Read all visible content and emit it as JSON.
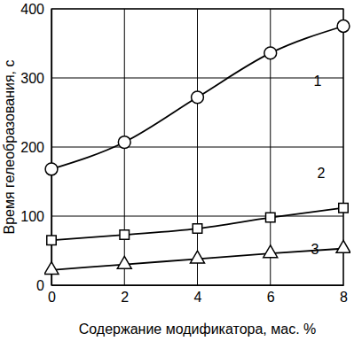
{
  "chart_data": {
    "type": "line",
    "x_label": "Содержание модификатора, мас. %",
    "y_label": "Время гелеобразования, с",
    "x": [
      0,
      2,
      4,
      6,
      8
    ],
    "series": [
      {
        "name": "1",
        "color": "#000000",
        "marker": "circle",
        "line_style": "solid",
        "values": [
          168,
          207,
          272,
          336,
          375
        ]
      },
      {
        "name": "2",
        "color": "#000000",
        "marker": "square",
        "line_style": "solid",
        "values": [
          65,
          73,
          82,
          98,
          112
        ]
      },
      {
        "name": "3",
        "color": "#000000",
        "marker": "triangle",
        "line_style": "solid",
        "values": [
          22,
          30,
          38,
          46,
          53
        ]
      }
    ],
    "xlim": [
      0,
      8
    ],
    "xticks": [
      0,
      2,
      4,
      6,
      8
    ],
    "ylim": [
      0,
      400
    ],
    "yticks": [
      0,
      100,
      200,
      300,
      400
    ],
    "grid": true
  }
}
